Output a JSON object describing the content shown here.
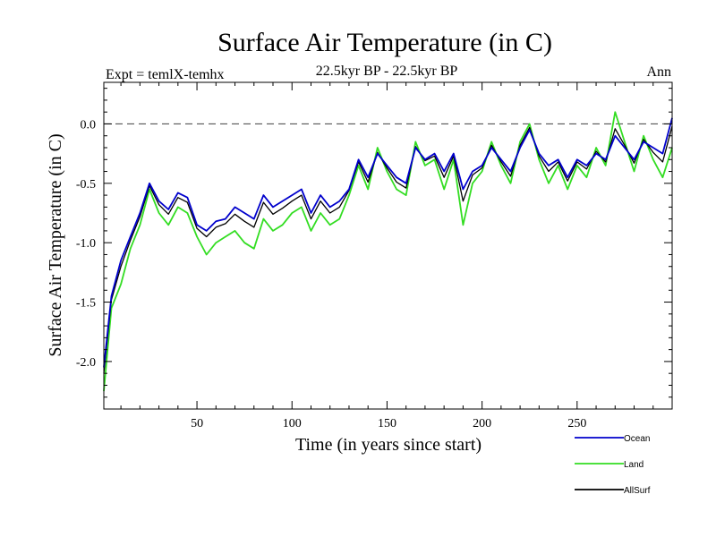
{
  "chart_data": {
    "type": "line",
    "title": "Surface Air Temperature (in C)",
    "subtitle": "22.5kyr BP - 22.5kyr BP",
    "expt_label": "Expt = temlX-temhx",
    "season_label": "Ann",
    "xlabel": "Time (in years since start)",
    "ylabel": "Surface Air Temperature (in C)",
    "xlim": [
      1,
      300
    ],
    "ylim": [
      -2.4,
      0.35
    ],
    "xticks": [
      50,
      100,
      150,
      200,
      250
    ],
    "xtick_labels": [
      "50",
      "100",
      "150",
      "200",
      "250"
    ],
    "yticks": [
      -2.0,
      -1.5,
      -1.0,
      -0.5,
      0.0
    ],
    "ytick_labels": [
      "-2.0",
      "-1.5",
      "-1.0",
      "-0.5",
      "0.0"
    ],
    "reference_line": 0.0,
    "legend_position": "bottom-right, below plot",
    "series": [
      {
        "name": "Ocean",
        "color": "#0000cc",
        "x": [
          1,
          5,
          10,
          15,
          20,
          25,
          30,
          35,
          40,
          45,
          50,
          55,
          60,
          65,
          70,
          75,
          80,
          85,
          90,
          95,
          100,
          105,
          110,
          115,
          120,
          125,
          130,
          135,
          140,
          145,
          150,
          155,
          160,
          165,
          170,
          175,
          180,
          185,
          190,
          195,
          200,
          205,
          210,
          215,
          220,
          225,
          230,
          235,
          240,
          245,
          250,
          255,
          260,
          265,
          270,
          275,
          280,
          285,
          290,
          295,
          300
        ],
        "values": [
          -2.05,
          -1.45,
          -1.15,
          -0.95,
          -0.75,
          -0.5,
          -0.65,
          -0.72,
          -0.58,
          -0.62,
          -0.85,
          -0.9,
          -0.82,
          -0.8,
          -0.7,
          -0.75,
          -0.8,
          -0.6,
          -0.7,
          -0.65,
          -0.6,
          -0.55,
          -0.75,
          -0.6,
          -0.7,
          -0.65,
          -0.55,
          -0.3,
          -0.45,
          -0.25,
          -0.35,
          -0.45,
          -0.5,
          -0.2,
          -0.3,
          -0.25,
          -0.4,
          -0.25,
          -0.55,
          -0.4,
          -0.35,
          -0.2,
          -0.3,
          -0.4,
          -0.2,
          -0.05,
          -0.25,
          -0.35,
          -0.3,
          -0.45,
          -0.3,
          -0.35,
          -0.25,
          -0.3,
          -0.1,
          -0.2,
          -0.3,
          -0.15,
          -0.2,
          -0.25,
          0.05
        ]
      },
      {
        "name": "Land",
        "color": "#33dd22",
        "x": [
          1,
          5,
          10,
          15,
          20,
          25,
          30,
          35,
          40,
          45,
          50,
          55,
          60,
          65,
          70,
          75,
          80,
          85,
          90,
          95,
          100,
          105,
          110,
          115,
          120,
          125,
          130,
          135,
          140,
          145,
          150,
          155,
          160,
          165,
          170,
          175,
          180,
          185,
          190,
          195,
          200,
          205,
          210,
          215,
          220,
          225,
          230,
          235,
          240,
          245,
          250,
          255,
          260,
          265,
          270,
          275,
          280,
          285,
          290,
          295,
          300
        ],
        "values": [
          -2.25,
          -1.55,
          -1.35,
          -1.05,
          -0.85,
          -0.55,
          -0.75,
          -0.85,
          -0.7,
          -0.75,
          -0.95,
          -1.1,
          -1.0,
          -0.95,
          -0.9,
          -1.0,
          -1.05,
          -0.8,
          -0.9,
          -0.85,
          -0.75,
          -0.7,
          -0.9,
          -0.75,
          -0.85,
          -0.8,
          -0.6,
          -0.35,
          -0.55,
          -0.2,
          -0.4,
          -0.55,
          -0.6,
          -0.15,
          -0.35,
          -0.3,
          -0.55,
          -0.3,
          -0.85,
          -0.5,
          -0.4,
          -0.15,
          -0.35,
          -0.5,
          -0.15,
          0.0,
          -0.3,
          -0.5,
          -0.35,
          -0.55,
          -0.35,
          -0.45,
          -0.2,
          -0.35,
          0.1,
          -0.15,
          -0.4,
          -0.1,
          -0.3,
          -0.45,
          -0.2
        ]
      },
      {
        "name": "AllSurf",
        "color": "#000000",
        "x": [
          1,
          5,
          10,
          15,
          20,
          25,
          30,
          35,
          40,
          45,
          50,
          55,
          60,
          65,
          70,
          75,
          80,
          85,
          90,
          95,
          100,
          105,
          110,
          115,
          120,
          125,
          130,
          135,
          140,
          145,
          150,
          155,
          160,
          165,
          170,
          175,
          180,
          185,
          190,
          195,
          200,
          205,
          210,
          215,
          220,
          225,
          230,
          235,
          240,
          245,
          250,
          255,
          260,
          265,
          270,
          275,
          280,
          285,
          290,
          295,
          300
        ],
        "values": [
          -2.1,
          -1.48,
          -1.2,
          -0.98,
          -0.78,
          -0.52,
          -0.68,
          -0.76,
          -0.62,
          -0.66,
          -0.88,
          -0.95,
          -0.87,
          -0.84,
          -0.76,
          -0.82,
          -0.87,
          -0.66,
          -0.76,
          -0.71,
          -0.65,
          -0.6,
          -0.8,
          -0.65,
          -0.75,
          -0.7,
          -0.56,
          -0.32,
          -0.49,
          -0.24,
          -0.37,
          -0.49,
          -0.54,
          -0.19,
          -0.31,
          -0.27,
          -0.45,
          -0.27,
          -0.65,
          -0.43,
          -0.37,
          -0.18,
          -0.32,
          -0.44,
          -0.18,
          -0.03,
          -0.27,
          -0.4,
          -0.32,
          -0.48,
          -0.32,
          -0.38,
          -0.23,
          -0.32,
          -0.04,
          -0.18,
          -0.33,
          -0.13,
          -0.24,
          -0.32,
          -0.02
        ]
      }
    ]
  }
}
